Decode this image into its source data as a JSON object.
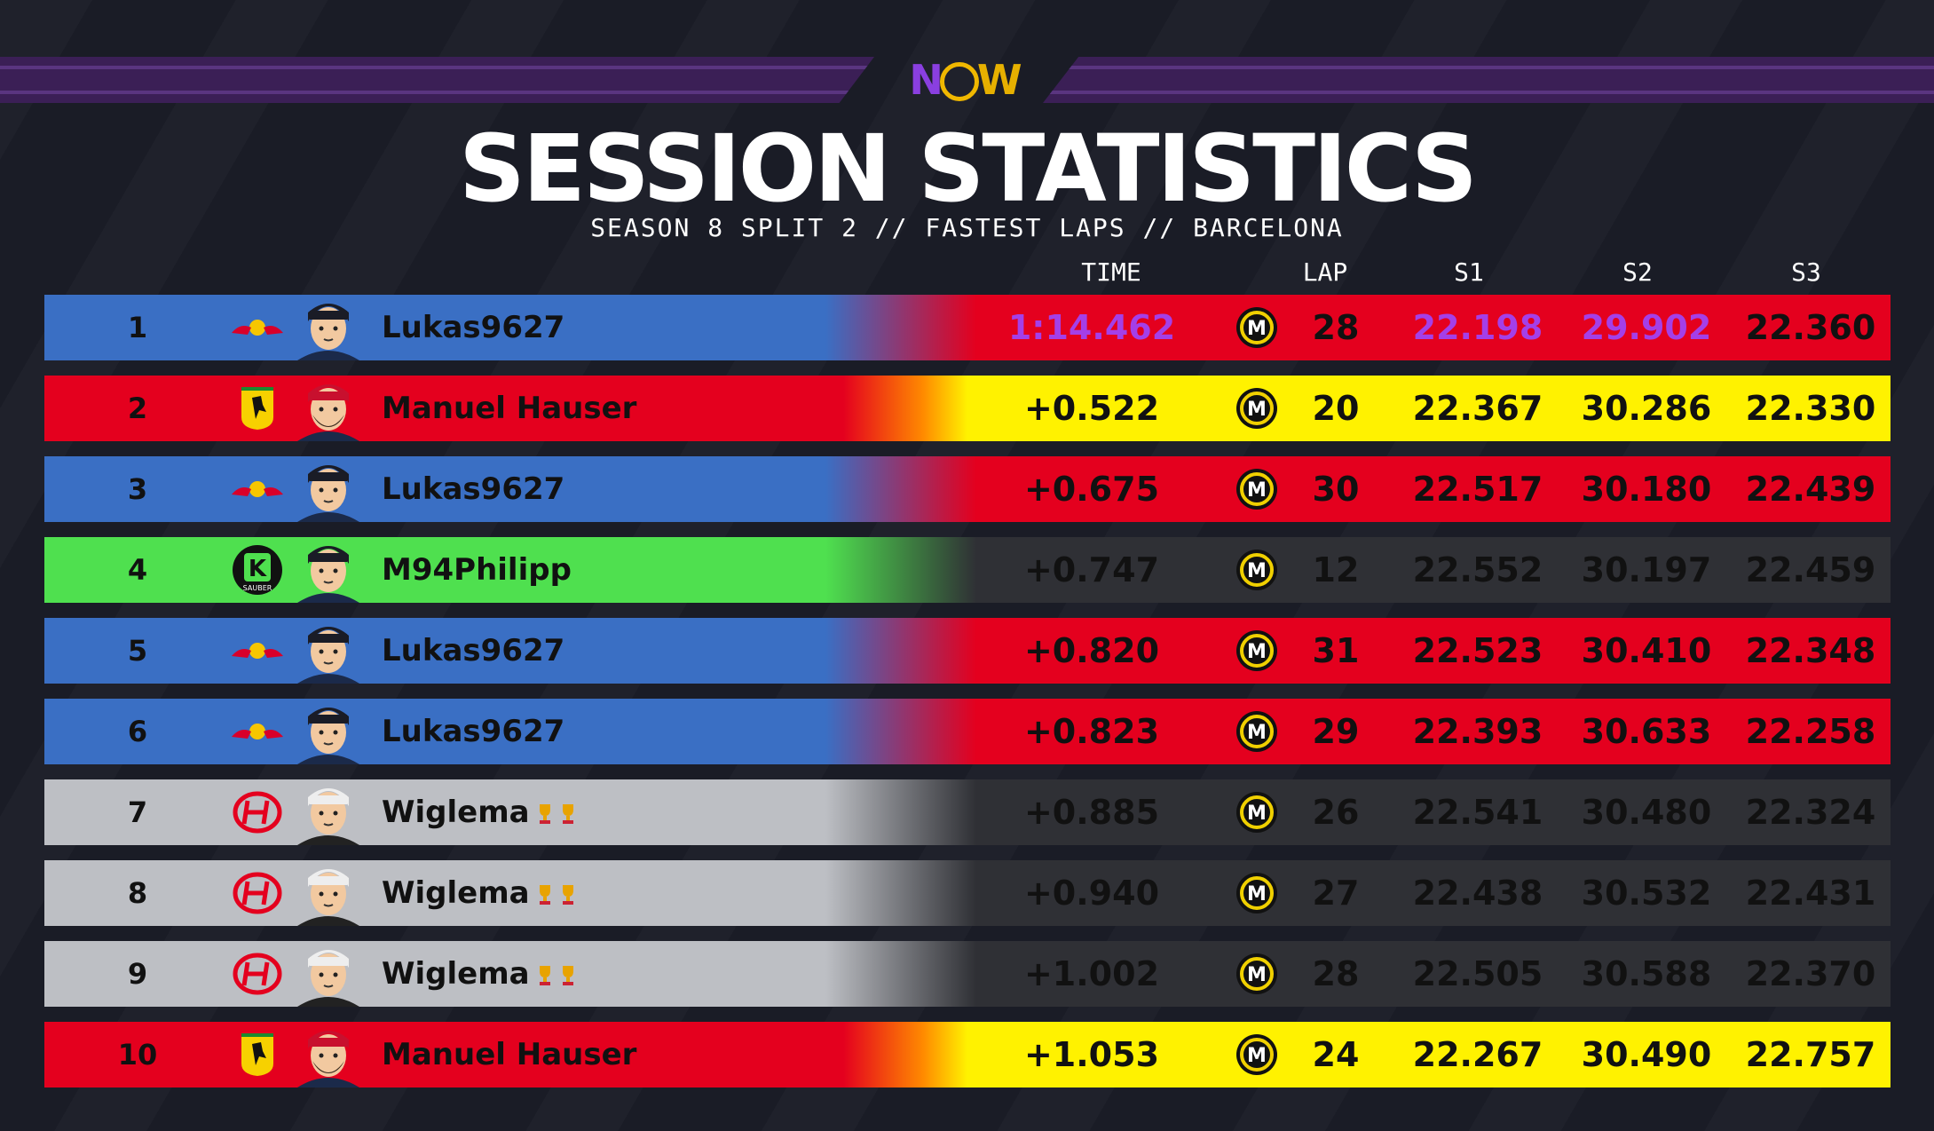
{
  "logo": {
    "n": "N",
    "w": "W"
  },
  "title": "SESSION STATISTICS",
  "subtitle": "SEASON 8 SPLIT 2 // FASTEST LAPS // BARCELONA",
  "columns": {
    "time": "TIME",
    "lap": "LAP",
    "s1": "S1",
    "s2": "S2",
    "s3": "S3"
  },
  "colors": {
    "redbull": "#3a6fc4",
    "ferrari": "#e4001e",
    "sauber": "#4fe04f",
    "haas": "#bdbfc4",
    "red": "#e4001e",
    "yellow": "#fff200",
    "dark": "#2f3035",
    "purple": "#a43fe8",
    "tyre_ring": "#f0d000"
  },
  "rows": [
    {
      "pos": "1",
      "team": "redbull-logo",
      "name": "Lukas9627",
      "time": "1:14.462",
      "lap": "28",
      "s1": "22.198",
      "s2": "29.902",
      "s3": "22.360",
      "trophies": 0
    },
    {
      "pos": "2",
      "team": "ferrari-logo",
      "name": "Manuel Hauser",
      "time": "+0.522",
      "lap": "20",
      "s1": "22.367",
      "s2": "30.286",
      "s3": "22.330",
      "trophies": 0
    },
    {
      "pos": "3",
      "team": "redbull-logo",
      "name": "Lukas9627",
      "time": "+0.675",
      "lap": "30",
      "s1": "22.517",
      "s2": "30.180",
      "s3": "22.439",
      "trophies": 0
    },
    {
      "pos": "4",
      "team": "sauber-logo",
      "name": "M94Philipp",
      "time": "+0.747",
      "lap": "12",
      "s1": "22.552",
      "s2": "30.197",
      "s3": "22.459",
      "trophies": 0
    },
    {
      "pos": "5",
      "team": "redbull-logo",
      "name": "Lukas9627",
      "time": "+0.820",
      "lap": "31",
      "s1": "22.523",
      "s2": "30.410",
      "s3": "22.348",
      "trophies": 0
    },
    {
      "pos": "6",
      "team": "redbull-logo",
      "name": "Lukas9627",
      "time": "+0.823",
      "lap": "29",
      "s1": "22.393",
      "s2": "30.633",
      "s3": "22.258",
      "trophies": 0
    },
    {
      "pos": "7",
      "team": "haas-logo",
      "name": "Wiglema",
      "time": "+0.885",
      "lap": "26",
      "s1": "22.541",
      "s2": "30.480",
      "s3": "22.324",
      "trophies": 2
    },
    {
      "pos": "8",
      "team": "haas-logo",
      "name": "Wiglema",
      "time": "+0.940",
      "lap": "27",
      "s1": "22.438",
      "s2": "30.532",
      "s3": "22.431",
      "trophies": 2
    },
    {
      "pos": "9",
      "team": "haas-logo",
      "name": "Wiglema",
      "time": "+1.002",
      "lap": "28",
      "s1": "22.505",
      "s2": "30.588",
      "s3": "22.370",
      "trophies": 2
    },
    {
      "pos": "10",
      "team": "ferrari-logo",
      "name": "Manuel Hauser",
      "time": "+1.053",
      "lap": "24",
      "s1": "22.267",
      "s2": "30.490",
      "s3": "22.757",
      "trophies": 0
    }
  ],
  "sauber_text": {
    "k": "K",
    "small": "SAUBER"
  },
  "tyre_letter": "M"
}
